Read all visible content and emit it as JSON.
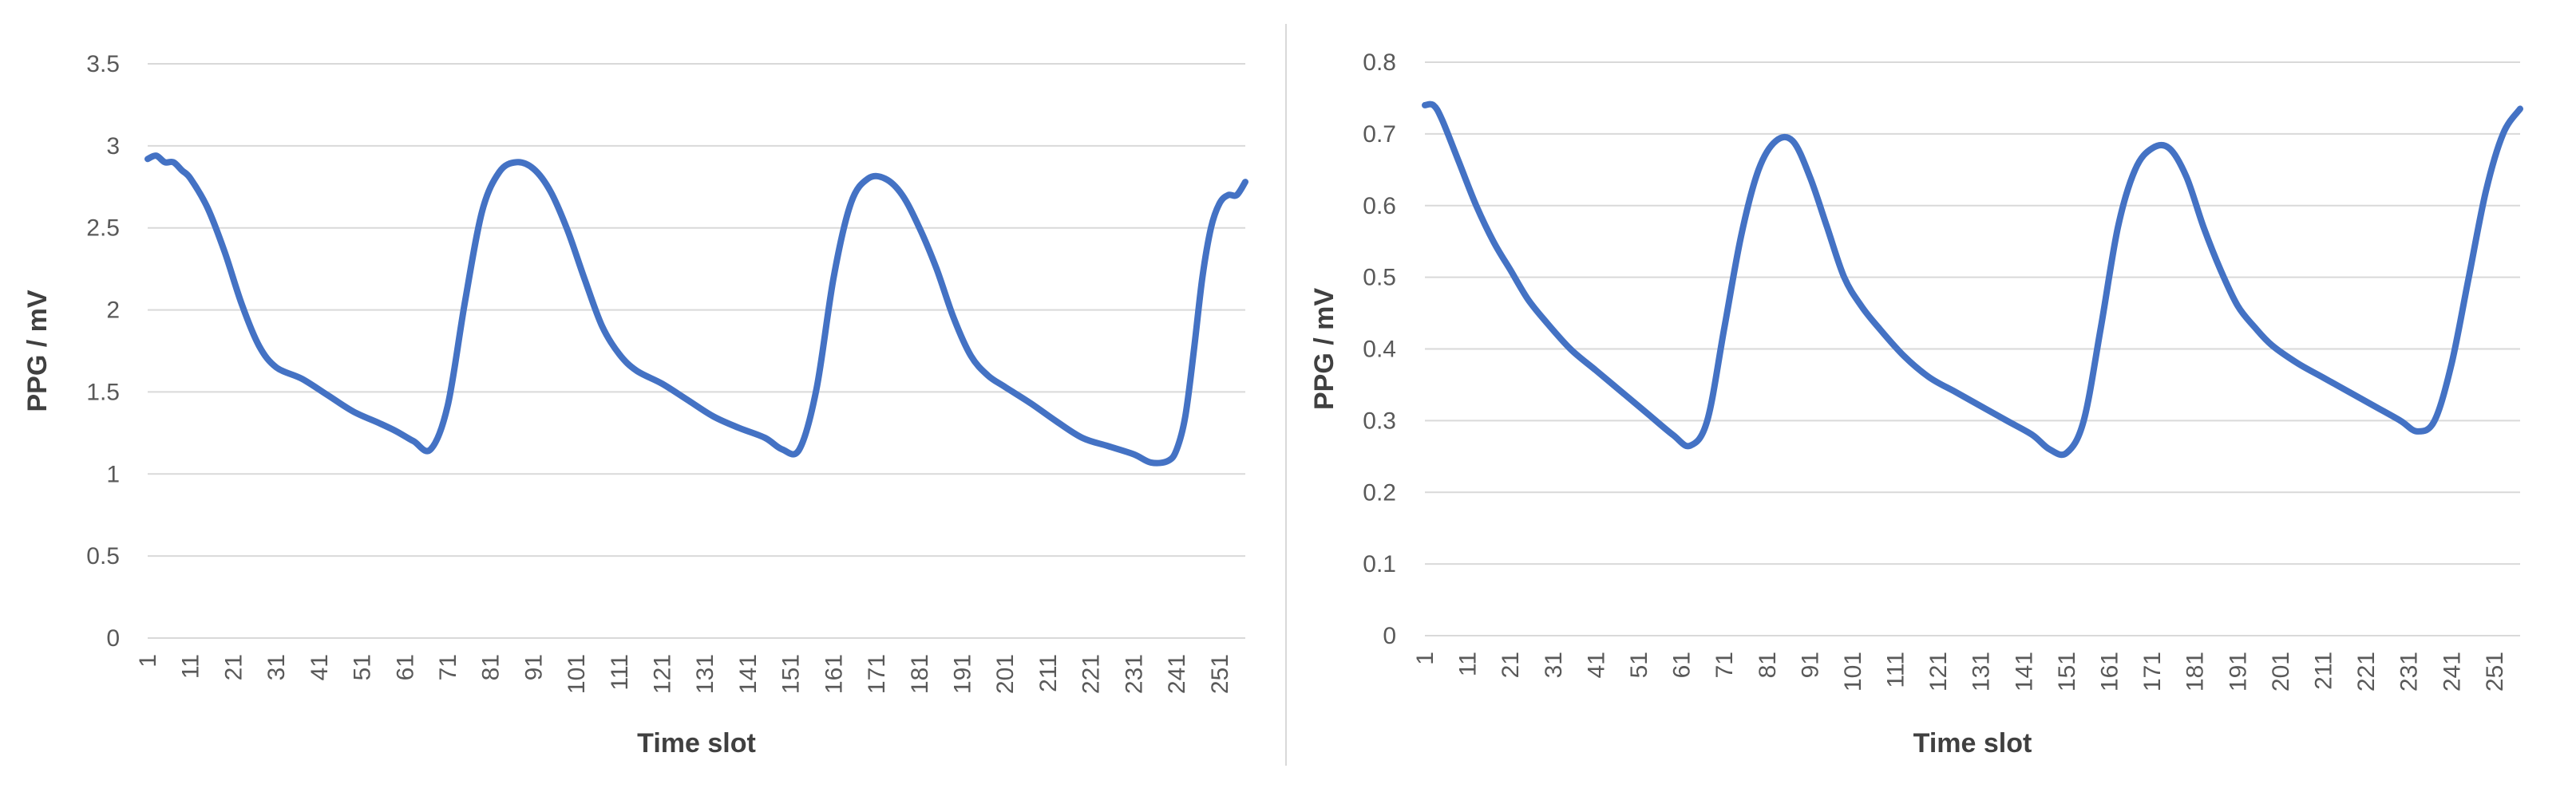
{
  "chart_data": [
    {
      "type": "line",
      "xlabel": "Time slot",
      "ylabel": "PPG / mV",
      "ylim": [
        0,
        3.5
      ],
      "y_ticks": [
        "0",
        "0.5",
        "1",
        "1.5",
        "2",
        "2.5",
        "3",
        "3.5"
      ],
      "x_ticks": [
        "1",
        "11",
        "21",
        "31",
        "41",
        "51",
        "61",
        "71",
        "81",
        "91",
        "101",
        "111",
        "121",
        "131",
        "141",
        "151",
        "161",
        "171",
        "181",
        "191",
        "201",
        "211",
        "221",
        "231",
        "241",
        "251"
      ],
      "xlim": [
        1,
        257
      ],
      "grid": true,
      "legend": "none",
      "series": [
        {
          "color": "#4472C4",
          "x": [
            1,
            3,
            5,
            7,
            9,
            11,
            15,
            19,
            23,
            27,
            31,
            37,
            43,
            49,
            55,
            59,
            63,
            67,
            71,
            75,
            79,
            83,
            87,
            91,
            95,
            99,
            103,
            107,
            111,
            115,
            121,
            127,
            133,
            139,
            145,
            149,
            153,
            157,
            161,
            165,
            169,
            173,
            177,
            181,
            185,
            189,
            193,
            197,
            201,
            207,
            213,
            219,
            225,
            231,
            235,
            239,
            241,
            243,
            245,
            247,
            249,
            251,
            253,
            255,
            257
          ],
          "y": [
            2.92,
            2.94,
            2.9,
            2.9,
            2.85,
            2.8,
            2.62,
            2.35,
            2.03,
            1.78,
            1.65,
            1.58,
            1.48,
            1.38,
            1.31,
            1.26,
            1.2,
            1.15,
            1.42,
            2.05,
            2.6,
            2.84,
            2.9,
            2.86,
            2.72,
            2.48,
            2.18,
            1.9,
            1.73,
            1.63,
            1.55,
            1.45,
            1.35,
            1.28,
            1.22,
            1.15,
            1.15,
            1.52,
            2.2,
            2.65,
            2.8,
            2.8,
            2.7,
            2.5,
            2.25,
            1.95,
            1.72,
            1.6,
            1.53,
            1.43,
            1.32,
            1.22,
            1.17,
            1.12,
            1.07,
            1.08,
            1.15,
            1.35,
            1.75,
            2.2,
            2.5,
            2.65,
            2.7,
            2.7,
            2.78
          ]
        }
      ]
    },
    {
      "type": "line",
      "xlabel": "Time slot",
      "ylabel": "PPG / mV",
      "ylim": [
        0,
        0.8
      ],
      "y_ticks": [
        "0",
        "0.1",
        "0.2",
        "0.3",
        "0.4",
        "0.5",
        "0.6",
        "0.7",
        "0.8"
      ],
      "x_ticks": [
        "1",
        "11",
        "21",
        "31",
        "41",
        "51",
        "61",
        "71",
        "81",
        "91",
        "101",
        "111",
        "121",
        "131",
        "141",
        "151",
        "161",
        "171",
        "181",
        "191",
        "201",
        "211",
        "221",
        "231",
        "241",
        "251"
      ],
      "xlim": [
        1,
        257
      ],
      "grid": true,
      "legend": "none",
      "series": [
        {
          "color": "#4472C4",
          "x": [
            1,
            3,
            5,
            9,
            13,
            17,
            21,
            25,
            29,
            35,
            41,
            47,
            53,
            59,
            63,
            67,
            71,
            75,
            79,
            83,
            87,
            91,
            95,
            99,
            103,
            107,
            113,
            119,
            125,
            131,
            137,
            143,
            147,
            151,
            155,
            159,
            163,
            167,
            171,
            175,
            179,
            183,
            187,
            191,
            195,
            199,
            205,
            211,
            217,
            223,
            229,
            233,
            237,
            241,
            245,
            249,
            253,
            257
          ],
          "y": [
            0.74,
            0.74,
            0.72,
            0.66,
            0.6,
            0.55,
            0.51,
            0.47,
            0.44,
            0.4,
            0.37,
            0.34,
            0.31,
            0.28,
            0.265,
            0.3,
            0.43,
            0.56,
            0.65,
            0.69,
            0.69,
            0.64,
            0.57,
            0.5,
            0.46,
            0.43,
            0.39,
            0.36,
            0.34,
            0.32,
            0.3,
            0.28,
            0.26,
            0.255,
            0.3,
            0.43,
            0.57,
            0.65,
            0.68,
            0.68,
            0.64,
            0.57,
            0.51,
            0.46,
            0.43,
            0.405,
            0.38,
            0.36,
            0.34,
            0.32,
            0.3,
            0.285,
            0.3,
            0.38,
            0.5,
            0.62,
            0.7,
            0.735
          ]
        }
      ]
    }
  ]
}
